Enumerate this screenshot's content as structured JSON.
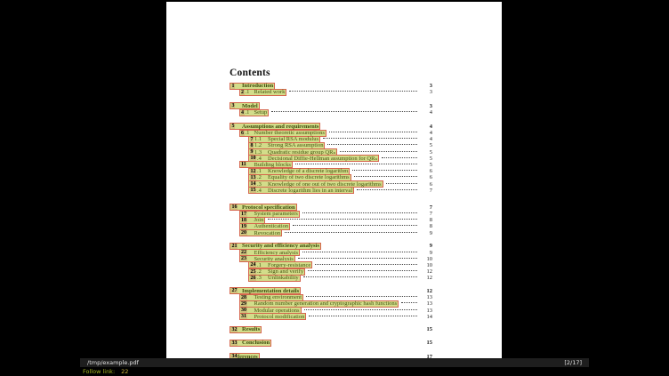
{
  "viewer": {
    "statusbar": {
      "filename": "/tmp/example.pdf",
      "page_indicator": "[2/17]"
    },
    "inputbar": {
      "prompt": "Follow link:",
      "value": "22"
    }
  },
  "colors": {
    "page_background": "#ffffff",
    "desktop_background": "#000000",
    "link_highlight_fill": "#d2dd8a",
    "link_border": "#d5654d",
    "hint_label_background": "#cdc17c",
    "link_text": "#465410",
    "statusbar_background": "#1e1e1e",
    "statusbar_text": "#e2e2e2",
    "inputbar_prompt": "#a4b622",
    "inputbar_value": "#cdb53d"
  },
  "page": {
    "title": "Contents",
    "toc_groups": [
      {
        "gap": "none",
        "rows": [
          {
            "hint": "1",
            "pre": "",
            "title": "Introduction",
            "page": "3",
            "level": 1,
            "dots": false
          },
          {
            "hint": "2",
            "pre": ".1",
            "title": "Related work",
            "page": "3",
            "level": 2,
            "dots": true
          }
        ]
      },
      {
        "gap": "m",
        "rows": [
          {
            "hint": "3",
            "pre": "",
            "title": "Model",
            "page": "3",
            "level": 1,
            "dots": false
          },
          {
            "hint": "4",
            "pre": ".1",
            "title": "Setup",
            "page": "4",
            "level": 2,
            "dots": true
          }
        ]
      },
      {
        "gap": "m",
        "rows": [
          {
            "hint": "5",
            "pre": "",
            "title": "Assumptions and requirements",
            "page": "4",
            "level": 1,
            "dots": false
          },
          {
            "hint": "6",
            "pre": ".1",
            "title": "Number theoretic assumptions",
            "page": "4",
            "level": 2,
            "dots": true
          },
          {
            "hint": "7",
            "pre": "1.1",
            "title": "Special RSA modulus",
            "page": "4",
            "level": 3,
            "dots": true
          },
          {
            "hint": "8",
            "pre": "1.2",
            "title": "Strong RSA assumption",
            "page": "5",
            "level": 3,
            "dots": true
          },
          {
            "hint": "9",
            "pre": "1.3",
            "title": "Quadratic residue group QRₙ",
            "page": "5",
            "level": 3,
            "dots": true
          },
          {
            "hint": "10",
            "pre": ".4",
            "title": "Decisional Diffie-Hellman assumption for QRₙ",
            "page": "5",
            "level": 3,
            "dots": true
          },
          {
            "hint": "11",
            "pre": "",
            "title": "Building blocks",
            "page": "5",
            "level": 2,
            "dots": true
          },
          {
            "hint": "12",
            "pre": ".1",
            "title": "Knowledge of a discrete logarithm",
            "page": "6",
            "level": 3,
            "dots": true
          },
          {
            "hint": "13",
            "pre": ".2",
            "title": "Equality of two discrete logarithms",
            "page": "6",
            "level": 3,
            "dots": true
          },
          {
            "hint": "14",
            "pre": ".3",
            "title": "Knowledge of one out of two discrete logarithms",
            "page": "6",
            "level": 3,
            "dots": true
          },
          {
            "hint": "15",
            "pre": ".4",
            "title": "Discrete logarithm lies in an interval",
            "page": "7",
            "level": 3,
            "dots": true
          }
        ]
      },
      {
        "gap": "l",
        "rows": [
          {
            "hint": "16",
            "pre": "",
            "title": "Protocol specification",
            "page": "7",
            "level": 1,
            "dots": false
          },
          {
            "hint": "17",
            "pre": "",
            "title": "System parameters",
            "page": "7",
            "level": 2,
            "dots": true
          },
          {
            "hint": "18",
            "pre": "",
            "title": "Join",
            "page": "8",
            "level": 2,
            "dots": true
          },
          {
            "hint": "19",
            "pre": "",
            "title": "Authentication",
            "page": "8",
            "level": 2,
            "dots": true
          },
          {
            "hint": "20",
            "pre": "",
            "title": "Revocation",
            "page": "9",
            "level": 2,
            "dots": true
          }
        ]
      },
      {
        "gap": "none",
        "rows": [
          {
            "hint": "21",
            "pre": "",
            "title": "Security and efficiency analysis",
            "page": "9",
            "level": 1,
            "dots": false
          },
          {
            "hint": "22",
            "pre": "",
            "title": "Efficiency analysis",
            "page": "9",
            "level": 2,
            "dots": true
          },
          {
            "hint": "23",
            "pre": "",
            "title": "Security analysis",
            "page": "10",
            "level": 2,
            "dots": true
          },
          {
            "hint": "24",
            "pre": ".1",
            "title": "Forgery-resistance",
            "page": "10",
            "level": 3,
            "dots": true
          },
          {
            "hint": "25",
            "pre": ".2",
            "title": "Sign and verify",
            "page": "12",
            "level": 3,
            "dots": true
          },
          {
            "hint": "26",
            "pre": ".3",
            "title": "Unlinkability",
            "page": "12",
            "level": 3,
            "dots": true
          }
        ]
      },
      {
        "gap": "none",
        "rows": [
          {
            "hint": "27",
            "pre": "",
            "title": "Implementation details",
            "page": "12",
            "level": 1,
            "dots": false
          },
          {
            "hint": "28",
            "pre": "",
            "title": "Testing environment",
            "page": "13",
            "level": 2,
            "dots": true
          },
          {
            "hint": "29",
            "pre": "",
            "title": "Random number generation and cryptographic hash functions",
            "page": "13",
            "level": 2,
            "dots": true
          },
          {
            "hint": "30",
            "pre": "",
            "title": "Modular operations",
            "page": "13",
            "level": 2,
            "dots": true
          },
          {
            "hint": "31",
            "pre": "",
            "title": "Protocol modification",
            "page": "14",
            "level": 2,
            "dots": true
          }
        ]
      },
      {
        "gap": "none",
        "rows": [
          {
            "hint": "32",
            "pre": "",
            "title": "Results",
            "page": "15",
            "level": 1,
            "dots": false
          }
        ]
      },
      {
        "gap": "none",
        "rows": [
          {
            "hint": "33",
            "pre": "",
            "title": "Conclusion",
            "page": "15",
            "level": 1,
            "dots": false
          }
        ]
      },
      {
        "gap": "m",
        "rows": [
          {
            "hint": "34",
            "pre": "",
            "title": "ferences",
            "page": "17",
            "level": 1,
            "dots": false,
            "tight": true
          }
        ]
      }
    ]
  }
}
